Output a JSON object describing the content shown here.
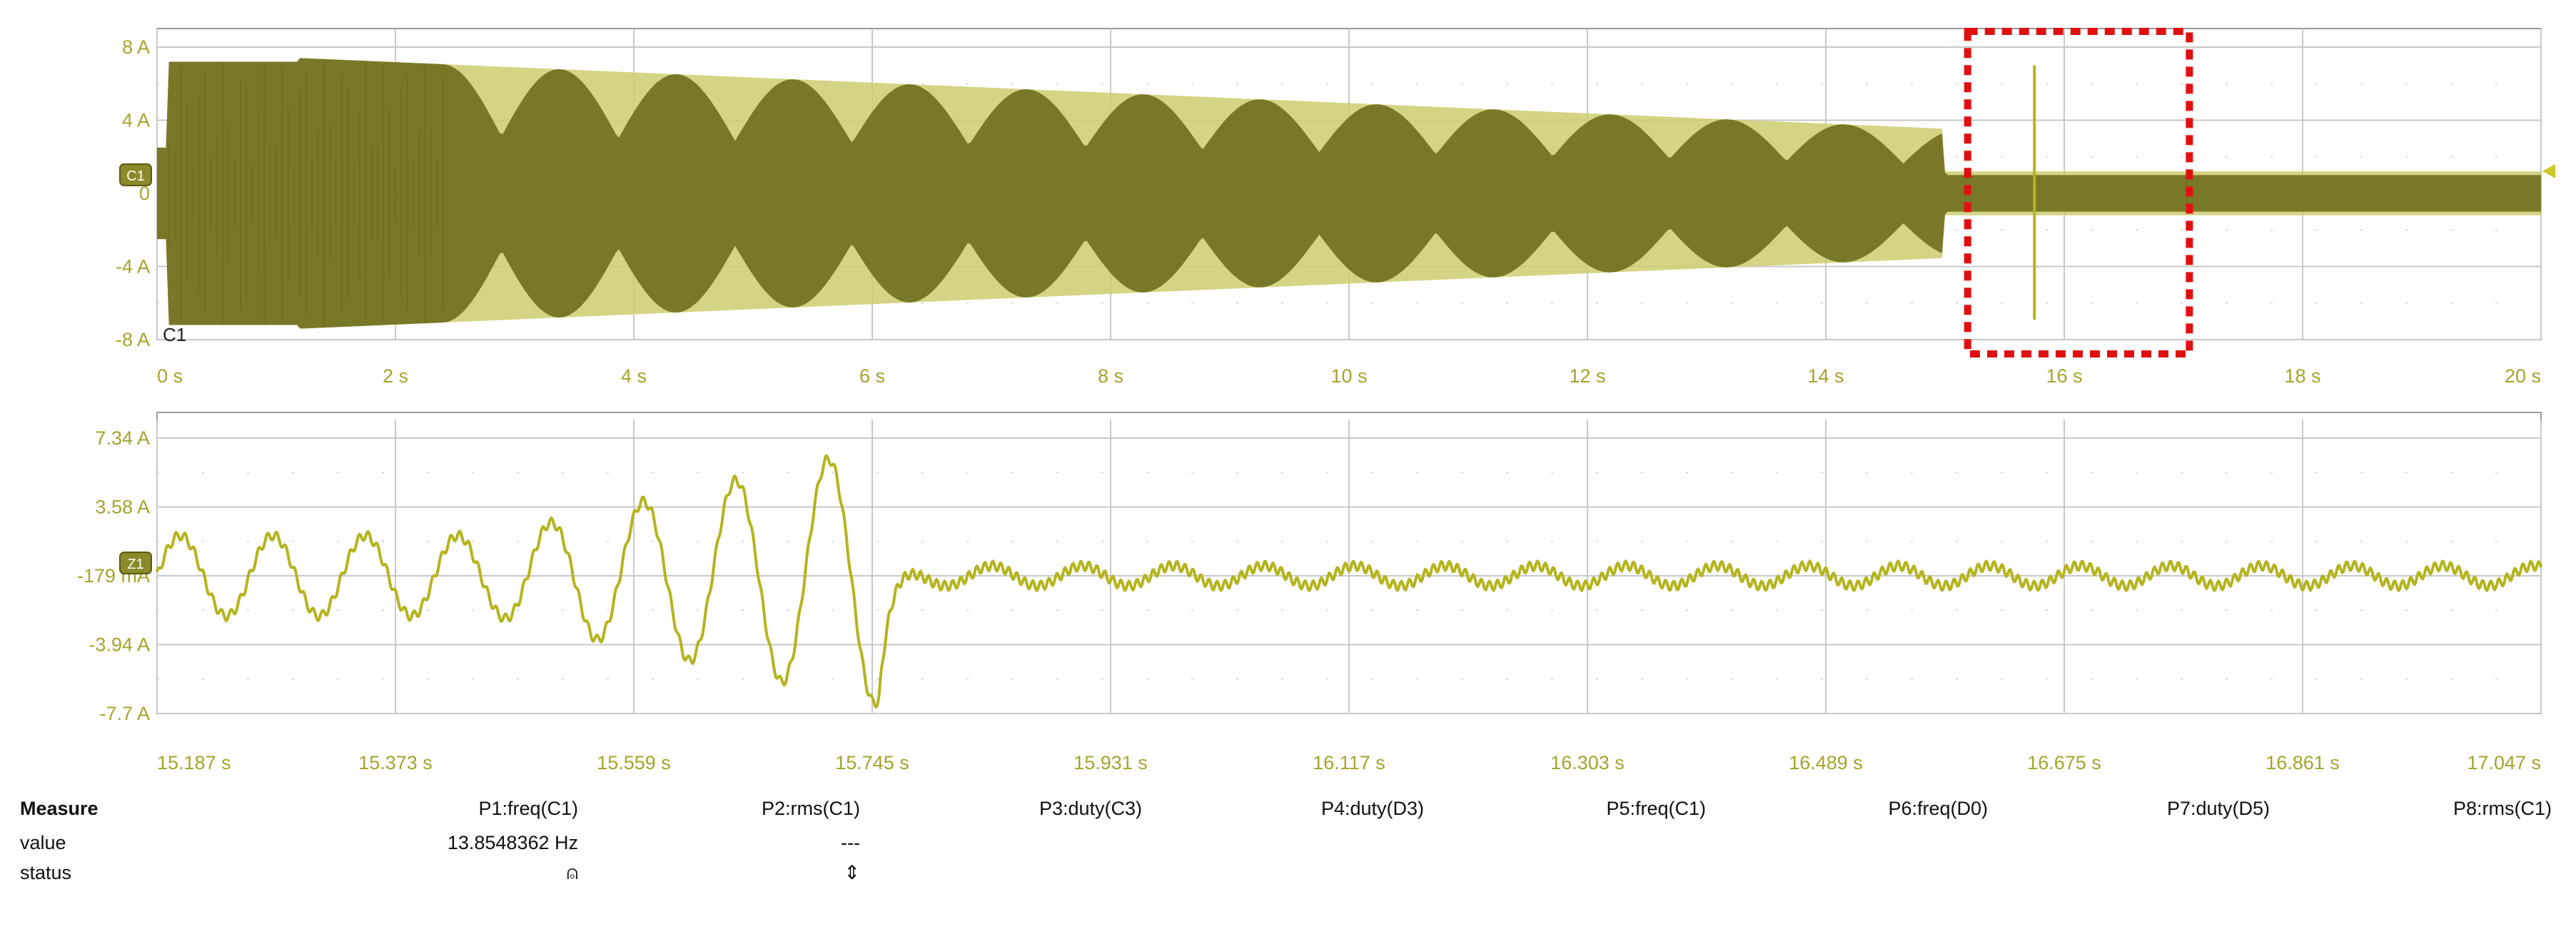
{
  "top_panel": {
    "y_ticks": [
      "8 A",
      "4 A",
      "0",
      "-4 A",
      "-8 A"
    ],
    "x_ticks": [
      "0 s",
      "2 s",
      "4 s",
      "6 s",
      "8 s",
      "10 s",
      "12 s",
      "14 s",
      "16 s",
      "18 s",
      "20 s"
    ],
    "channel_marker": "C1",
    "channel_label": "C1",
    "zoom_region": {
      "from_s": 15.19,
      "to_s": 17.05
    }
  },
  "bottom_panel": {
    "y_ticks": [
      "7.34 A",
      "3.58 A",
      "-179 mA",
      "-3.94 A",
      "-7.7 A"
    ],
    "x_ticks": [
      "15.187 s",
      "15.373 s",
      "15.559 s",
      "15.745 s",
      "15.931 s",
      "16.117 s",
      "16.303 s",
      "16.489 s",
      "16.675 s",
      "16.861 s",
      "17.047 s"
    ],
    "channel_marker": "Z1"
  },
  "measure": {
    "header_label": "Measure",
    "value_label": "value",
    "status_label": "status",
    "columns": [
      {
        "name": "P1:freq(C1)",
        "value": "13.8548362 Hz",
        "status": "⍝"
      },
      {
        "name": "P2:rms(C1)",
        "value": "---",
        "status": "⇕"
      },
      {
        "name": "P3:duty(C3)",
        "value": "",
        "status": ""
      },
      {
        "name": "P4:duty(D3)",
        "value": "",
        "status": ""
      },
      {
        "name": "P5:freq(C1)",
        "value": "",
        "status": ""
      },
      {
        "name": "P6:freq(D0)",
        "value": "",
        "status": ""
      },
      {
        "name": "P7:duty(D5)",
        "value": "",
        "status": ""
      },
      {
        "name": "P8:rms(C1)",
        "value": "",
        "status": ""
      }
    ]
  },
  "colors": {
    "trace_dark": "#6e6e1e",
    "trace_light": "#cdcd6e",
    "trace_bright": "#b4b41e",
    "zoom_box": "#e01010",
    "tick_text": "#a4a42c",
    "grid": "#c8c8c8"
  }
}
